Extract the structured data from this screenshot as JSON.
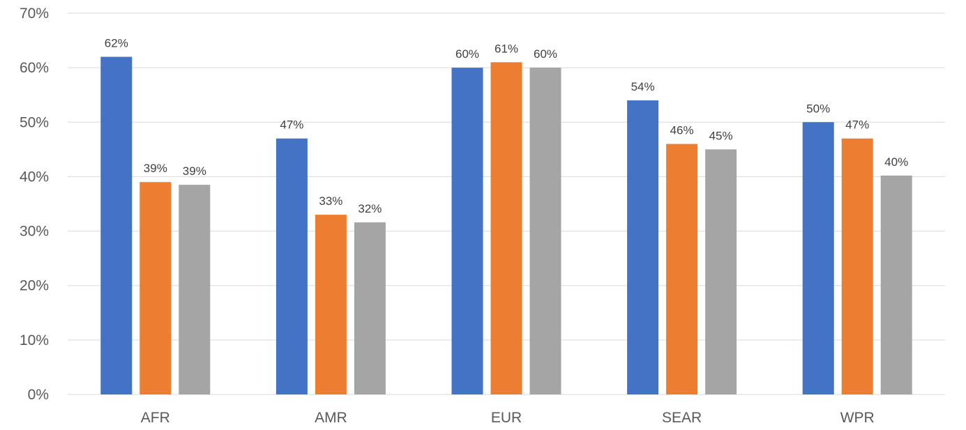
{
  "chart_data": {
    "type": "bar",
    "categories": [
      "AFR",
      "AMR",
      "EUR",
      "SEAR",
      "WPR"
    ],
    "series": [
      {
        "values": [
          0.62,
          0.47,
          0.6,
          0.54,
          0.5
        ],
        "labels": [
          "62%",
          "47%",
          "60%",
          "54%",
          "50%"
        ],
        "color": "#4472C4"
      },
      {
        "values": [
          0.39,
          0.33,
          0.61,
          0.46,
          0.47
        ],
        "labels": [
          "39%",
          "33%",
          "61%",
          "46%",
          "47%"
        ],
        "color": "#ED7D31"
      },
      {
        "values": [
          0.385,
          0.316,
          0.6,
          0.45,
          0.402
        ],
        "labels": [
          "39%",
          "32%",
          "60%",
          "45%",
          "40%"
        ],
        "color": "#A5A5A5"
      }
    ],
    "ylim": [
      0,
      0.7
    ],
    "yticks": [
      "0%",
      "10%",
      "20%",
      "30%",
      "40%",
      "50%",
      "60%",
      "70%"
    ],
    "grid": true,
    "legend": "none",
    "title": "",
    "xlabel": "",
    "ylabel": ""
  }
}
